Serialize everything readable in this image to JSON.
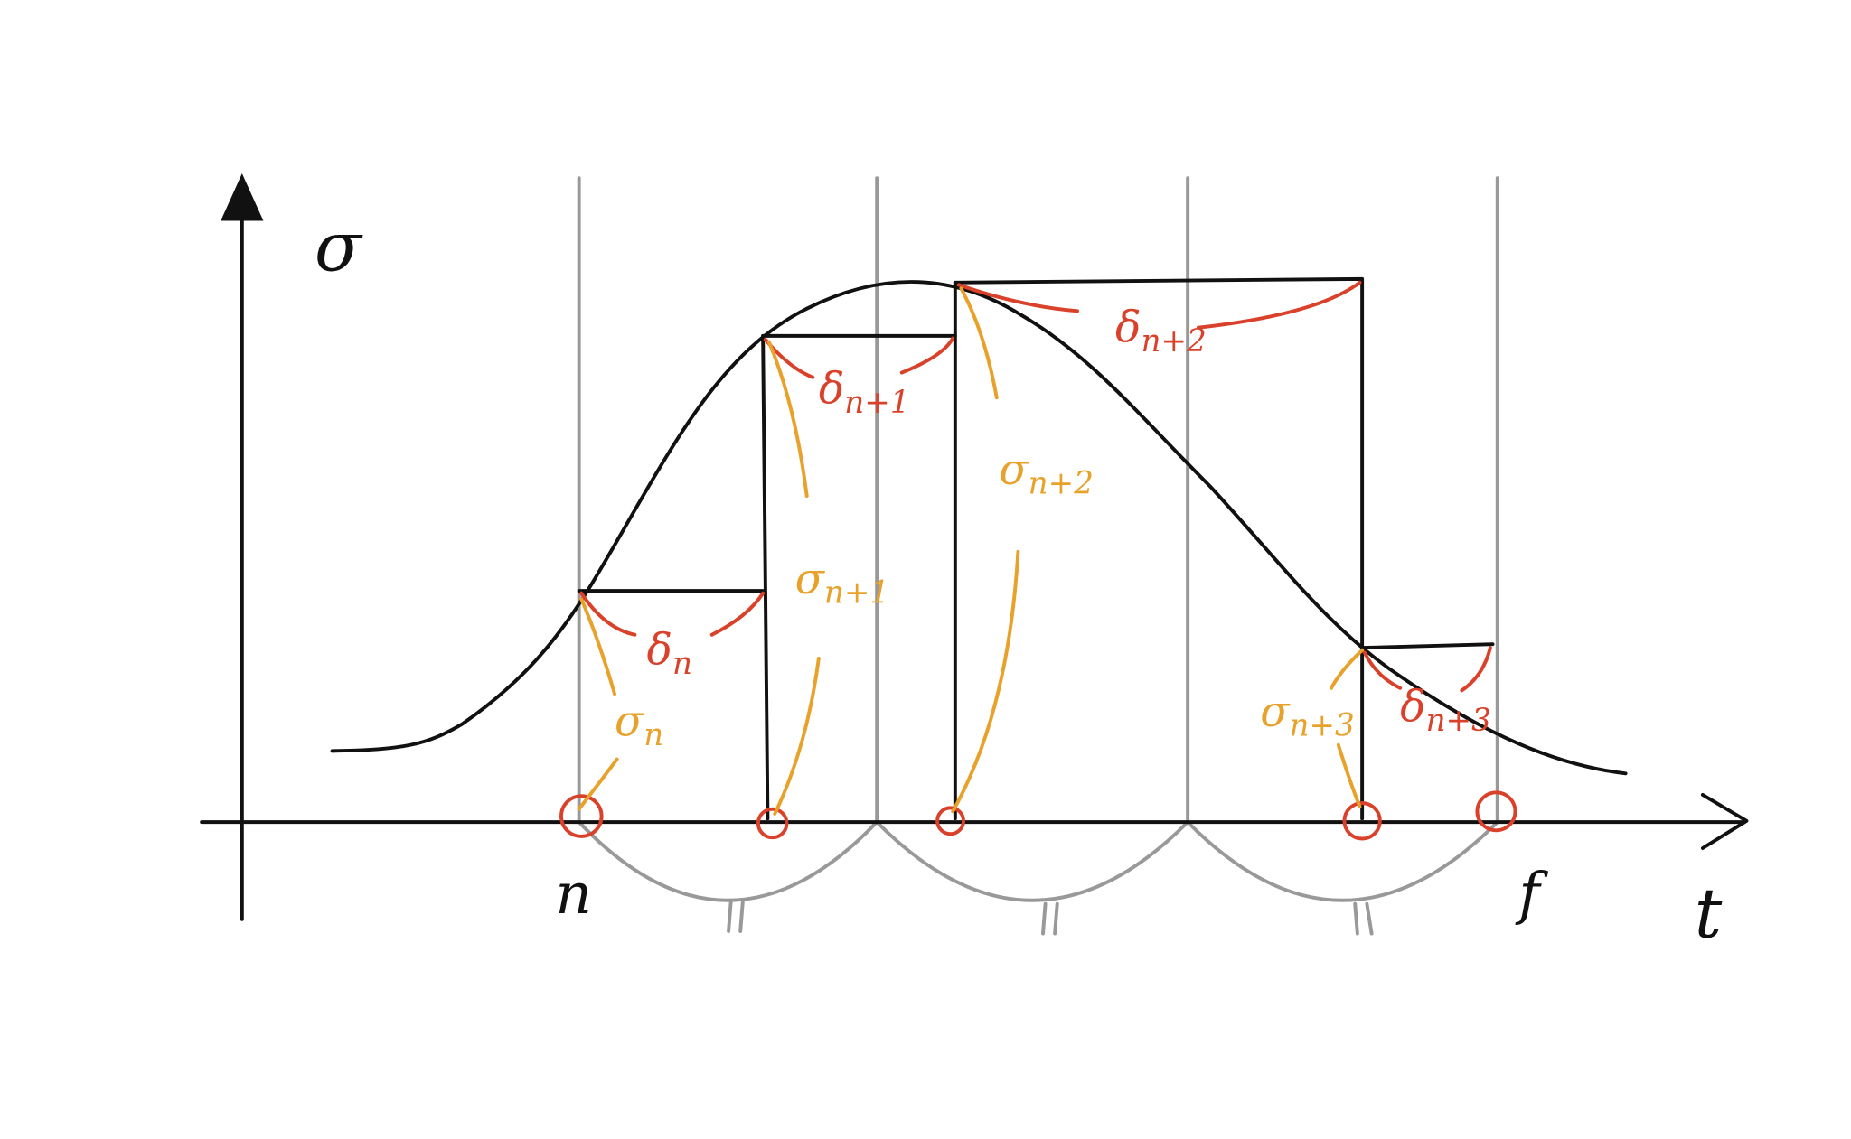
{
  "axes": {
    "y_label": "σ",
    "x_label": "t"
  },
  "points": {
    "start": "n",
    "end": "f"
  },
  "steps": [
    {
      "delta": {
        "symbol": "δ",
        "sub": "n"
      },
      "sigma": {
        "symbol": "σ",
        "sub": "n"
      }
    },
    {
      "delta": {
        "symbol": "δ",
        "sub": "n+1"
      },
      "sigma": {
        "symbol": "σ",
        "sub": "n+1"
      }
    },
    {
      "delta": {
        "symbol": "δ",
        "sub": "n+2"
      },
      "sigma": {
        "symbol": "σ",
        "sub": "n+2"
      }
    },
    {
      "delta": {
        "symbol": "δ",
        "sub": "n+3"
      },
      "sigma": {
        "symbol": "σ",
        "sub": "n+3"
      }
    }
  ]
}
